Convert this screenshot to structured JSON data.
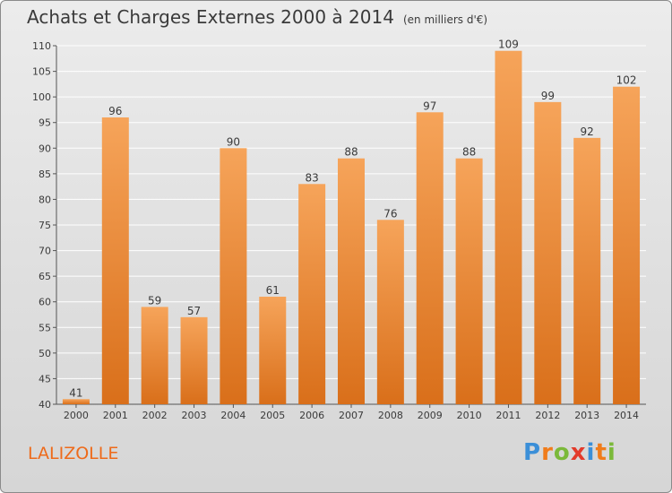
{
  "title": "Achats et Charges Externes 2000 à 2014",
  "unit": "(en milliers d'€)",
  "location": "LALIZOLLE",
  "logo": {
    "text": "Proxiti",
    "letters": [
      {
        "ch": "P",
        "color": "#3b8fd8"
      },
      {
        "ch": "r",
        "color": "#f07c1b"
      },
      {
        "ch": "o",
        "color": "#7bb93a"
      },
      {
        "ch": "x",
        "color": "#e33a2a"
      },
      {
        "ch": "i",
        "color": "#3b8fd8"
      },
      {
        "ch": "t",
        "color": "#f07c1b"
      },
      {
        "ch": "i",
        "color": "#7bb93a"
      }
    ]
  },
  "colors": {
    "bar_top": "#f6a45a",
    "bar_bottom": "#d96f1a",
    "text": "#3a3a3a",
    "grid": "#ffffff"
  },
  "chart_data": {
    "type": "bar",
    "categories": [
      "2000",
      "2001",
      "2002",
      "2003",
      "2004",
      "2005",
      "2006",
      "2007",
      "2008",
      "2009",
      "2010",
      "2011",
      "2012",
      "2013",
      "2014"
    ],
    "values": [
      41,
      96,
      59,
      57,
      90,
      61,
      83,
      88,
      76,
      97,
      88,
      109,
      99,
      92,
      102
    ],
    "ylim": [
      40,
      110
    ],
    "yticks": [
      40,
      45,
      50,
      55,
      60,
      65,
      70,
      75,
      80,
      85,
      90,
      95,
      100,
      105,
      110
    ],
    "grid": true,
    "legend": "none"
  }
}
